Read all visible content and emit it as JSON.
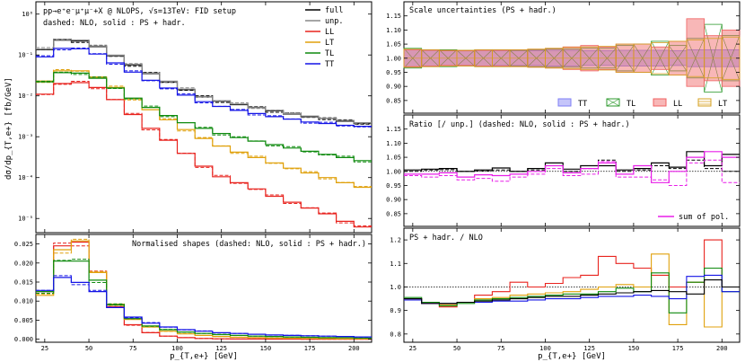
{
  "figure": {
    "xlabel": "p_{T,e+} [GeV]",
    "xticks": [
      25,
      50,
      75,
      100,
      125,
      150,
      175,
      200
    ],
    "xlim": [
      20,
      210
    ],
    "bin_edges": [
      20,
      30,
      40,
      50,
      60,
      70,
      80,
      90,
      100,
      110,
      120,
      130,
      140,
      150,
      160,
      170,
      180,
      190,
      200,
      210
    ]
  },
  "chart_data": [
    {
      "id": "main",
      "type": "line",
      "title": "pp→e⁺e⁻μ⁺μ⁻+X @ NLOPS, √s=13TeV: FID setup",
      "subtitle": "dashed: NLO, solid : PS + hadr.",
      "ylabel": "dσ/dp_{T,e+} [fb/GeV]",
      "yscale": "log",
      "ylim": [
        4.5e-06,
        2
      ],
      "yticks": [
        {
          "v": 1,
          "t": "10⁰"
        },
        {
          "v": 0.1,
          "t": "10⁻¹"
        },
        {
          "v": 0.01,
          "t": "10⁻²"
        },
        {
          "v": 0.001,
          "t": "10⁻³"
        },
        {
          "v": 0.0001,
          "t": "10⁻⁴"
        },
        {
          "v": 1e-05,
          "t": "10⁻⁵"
        }
      ],
      "legend": [
        "full",
        "unp.",
        "LL",
        "LT",
        "TL",
        "TT"
      ],
      "series": [
        {
          "name": "full",
          "color": "#000000",
          "values": [
            0.135,
            0.23,
            0.22,
            0.16,
            0.096,
            0.057,
            0.035,
            0.022,
            0.0142,
            0.0094,
            0.0074,
            0.0061,
            0.0052,
            0.0043,
            0.0036,
            0.0031,
            0.0028,
            0.0024,
            0.0021
          ]
        },
        {
          "name": "unp.",
          "color": "#888888",
          "values": [
            0.14,
            0.24,
            0.23,
            0.165,
            0.099,
            0.059,
            0.036,
            0.0228,
            0.0146,
            0.0097,
            0.0076,
            0.0063,
            0.0053,
            0.0044,
            0.0037,
            0.0032,
            0.0028,
            0.0025,
            0.0022
          ]
        },
        {
          "name": "LL",
          "color": "#e8231e",
          "values": [
            0.011,
            0.02,
            0.021,
            0.016,
            0.0081,
            0.0035,
            0.0016,
            0.00082,
            0.00039,
            0.00019,
            0.000105,
            7.5e-05,
            5.3e-05,
            3.5e-05,
            2.5e-05,
            1.8e-05,
            1.3e-05,
            8.5e-06,
            6.2e-06
          ]
        },
        {
          "name": "LT",
          "color": "#e0a10c",
          "values": [
            0.023,
            0.041,
            0.041,
            0.029,
            0.016,
            0.0085,
            0.0046,
            0.0026,
            0.0015,
            0.00091,
            0.00059,
            0.00042,
            0.00031,
            0.00023,
            0.00017,
            0.00013,
            0.0001,
            7.5e-05,
            5.8e-05
          ]
        },
        {
          "name": "TL",
          "color": "#0e8a0e",
          "values": [
            0.022,
            0.037,
            0.036,
            0.027,
            0.0155,
            0.0088,
            0.0052,
            0.0033,
            0.0022,
            0.0016,
            0.0012,
            0.00095,
            0.00078,
            0.00064,
            0.00053,
            0.00044,
            0.00037,
            0.00031,
            0.00026
          ]
        },
        {
          "name": "TT",
          "color": "#1414e6",
          "values": [
            0.09,
            0.145,
            0.142,
            0.105,
            0.064,
            0.038,
            0.024,
            0.0155,
            0.0104,
            0.0072,
            0.0055,
            0.0044,
            0.0037,
            0.0031,
            0.0027,
            0.0023,
            0.0021,
            0.0019,
            0.0018
          ]
        }
      ]
    },
    {
      "id": "shapes",
      "type": "line",
      "title": "Normalised shapes (dashed: NLO, solid : PS + hadr.)",
      "ylim": [
        -0.0008,
        0.0275
      ],
      "yticks": [
        {
          "v": 0,
          "t": "0.000"
        },
        {
          "v": 0.005,
          "t": "0.005"
        },
        {
          "v": 0.01,
          "t": "0.010"
        },
        {
          "v": 0.015,
          "t": "0.015"
        },
        {
          "v": 0.02,
          "t": "0.020"
        },
        {
          "v": 0.025,
          "t": "0.025"
        }
      ],
      "series": [
        {
          "name": "LL",
          "color": "#e8231e",
          "values": [
            0.0125,
            0.0245,
            0.0255,
            0.0175,
            0.0085,
            0.0038,
            0.0017,
            0.0008,
            0.0004,
            0.0002,
            0.0001,
            6e-05,
            4e-05,
            3e-05,
            2e-05,
            1e-05,
            1e-05,
            1e-05,
            1e-05
          ]
        },
        {
          "name": "LT",
          "color": "#e0a10c",
          "values": [
            0.0115,
            0.0235,
            0.0258,
            0.0175,
            0.0092,
            0.0052,
            0.0032,
            0.0021,
            0.0014,
            0.001,
            0.0007,
            0.0005,
            0.0004,
            0.0003,
            0.00025,
            0.0002,
            0.00015,
            0.0001,
            0.0001
          ]
        },
        {
          "name": "TL",
          "color": "#0e8a0e",
          "values": [
            0.0125,
            0.0205,
            0.0205,
            0.0155,
            0.009,
            0.0054,
            0.0035,
            0.0025,
            0.0019,
            0.0015,
            0.0012,
            0.001,
            0.0008,
            0.0007,
            0.0006,
            0.0005,
            0.0004,
            0.0004,
            0.0003
          ]
        },
        {
          "name": "TT",
          "color": "#1414e6",
          "values": [
            0.0128,
            0.0162,
            0.0149,
            0.0125,
            0.0083,
            0.0058,
            0.0042,
            0.0032,
            0.0025,
            0.0021,
            0.0017,
            0.0015,
            0.0013,
            0.0011,
            0.001,
            0.0009,
            0.0008,
            0.0007,
            0.0006
          ]
        }
      ]
    },
    {
      "id": "scale",
      "type": "area",
      "title": "Scale uncertainties (PS + hadr.)",
      "ylim": [
        0.805,
        1.2
      ],
      "yticks": [
        {
          "v": 0.85,
          "t": "0.85"
        },
        {
          "v": 0.9,
          "t": "0.90"
        },
        {
          "v": 0.95,
          "t": "0.95"
        },
        {
          "v": 1.0,
          "t": "1.00"
        },
        {
          "v": 1.05,
          "t": "1.05"
        },
        {
          "v": 1.1,
          "t": "1.10"
        },
        {
          "v": 1.15,
          "t": "1.15"
        }
      ],
      "legend": [
        "TT",
        "TL",
        "LL",
        "LT"
      ],
      "bands": [
        {
          "name": "TT",
          "color": "#7e7ef5",
          "fill": "rgba(126,126,245,0.45)",
          "lo": [
            0.968,
            0.972,
            0.972,
            0.974,
            0.972,
            0.974,
            0.974,
            0.974,
            0.972,
            0.972,
            0.974,
            0.974,
            0.972,
            0.972,
            0.972,
            0.974,
            0.97,
            0.97,
            0.97
          ],
          "hi": [
            1.032,
            1.028,
            1.028,
            1.027,
            1.028,
            1.027,
            1.027,
            1.027,
            1.028,
            1.028,
            1.027,
            1.027,
            1.028,
            1.028,
            1.028,
            1.027,
            1.03,
            1.03,
            1.03
          ]
        },
        {
          "name": "TL",
          "color": "#2e9a2e",
          "fill": "none",
          "lo": [
            0.965,
            0.97,
            0.97,
            0.972,
            0.97,
            0.97,
            0.972,
            0.97,
            0.968,
            0.968,
            0.965,
            0.965,
            0.955,
            0.95,
            0.94,
            0.955,
            0.93,
            0.88,
            0.92
          ],
          "hi": [
            1.035,
            1.03,
            1.03,
            1.028,
            1.03,
            1.03,
            1.028,
            1.03,
            1.032,
            1.032,
            1.035,
            1.035,
            1.045,
            1.05,
            1.06,
            1.045,
            1.07,
            1.12,
            1.08
          ]
        },
        {
          "name": "LL",
          "color": "#f06060",
          "fill": "rgba(240,96,96,0.45)",
          "lo": [
            0.97,
            0.972,
            0.974,
            0.974,
            0.972,
            0.972,
            0.97,
            0.968,
            0.965,
            0.96,
            0.955,
            0.96,
            0.95,
            0.95,
            0.96,
            0.94,
            0.9,
            0.92,
            0.9
          ],
          "hi": [
            1.03,
            1.028,
            1.026,
            1.026,
            1.028,
            1.028,
            1.03,
            1.032,
            1.035,
            1.04,
            1.045,
            1.04,
            1.05,
            1.05,
            1.04,
            1.06,
            1.14,
            1.08,
            1.1
          ]
        },
        {
          "name": "LT",
          "color": "#d6a020",
          "fill": "none",
          "lo": [
            0.968,
            0.97,
            0.972,
            0.972,
            0.97,
            0.97,
            0.97,
            0.968,
            0.965,
            0.962,
            0.96,
            0.958,
            0.95,
            0.95,
            0.945,
            0.94,
            0.935,
            0.93,
            0.925
          ],
          "hi": [
            1.032,
            1.03,
            1.028,
            1.028,
            1.03,
            1.03,
            1.03,
            1.032,
            1.035,
            1.038,
            1.04,
            1.042,
            1.05,
            1.05,
            1.055,
            1.06,
            1.065,
            1.07,
            1.075
          ]
        }
      ]
    },
    {
      "id": "ratio",
      "type": "line",
      "title": "Ratio [/ unp.] (dashed: NLO, solid : PS + hadr.)",
      "ylim": [
        0.805,
        1.2
      ],
      "yticks": [
        {
          "v": 0.85,
          "t": "0.85"
        },
        {
          "v": 0.9,
          "t": "0.90"
        },
        {
          "v": 0.95,
          "t": "0.95"
        },
        {
          "v": 1.0,
          "t": "1.00"
        },
        {
          "v": 1.05,
          "t": "1.05"
        },
        {
          "v": 1.1,
          "t": "1.10"
        },
        {
          "v": 1.15,
          "t": "1.15"
        }
      ],
      "legend": [
        "sum of pol."
      ],
      "series": [
        {
          "name": "full",
          "color": "#000000",
          "solid": [
            1.005,
            1.008,
            1.01,
            1.0,
            1.005,
            1.012,
            1.0,
            1.01,
            1.03,
            1.008,
            1.02,
            1.02,
            1.005,
            1.01,
            1.03,
            1.015,
            1.07,
            1.02,
            1.06
          ],
          "dashed": [
            1.0,
            1.005,
            1.006,
            1.0,
            1.002,
            1.005,
            1.0,
            1.005,
            1.02,
            1.0,
            1.01,
            1.04,
            1.0,
            1.005,
            1.02,
            1.01,
            1.04,
            1.01,
            1.0
          ]
        },
        {
          "name": "sum of pol.",
          "color": "#e81ee8",
          "solid": [
            0.99,
            0.99,
            0.995,
            0.98,
            0.988,
            0.985,
            0.99,
            1.0,
            1.02,
            0.995,
            1.01,
            1.03,
            0.99,
            1.02,
            0.96,
            1.0,
            1.05,
            1.07,
            1.05
          ],
          "dashed": [
            0.985,
            0.98,
            0.985,
            0.97,
            0.975,
            0.965,
            0.98,
            0.99,
            1.01,
            0.985,
            0.99,
            1.035,
            0.98,
            0.98,
            0.97,
            0.95,
            1.03,
            1.04,
            0.96
          ]
        }
      ]
    },
    {
      "id": "psnlo",
      "type": "line",
      "title": "PS + hadr. / NLO",
      "ylim": [
        0.765,
        1.25
      ],
      "yticks": [
        {
          "v": 0.8,
          "t": "0.8"
        },
        {
          "v": 0.9,
          "t": "0.9"
        },
        {
          "v": 1.0,
          "t": "1.0"
        },
        {
          "v": 1.1,
          "t": "1.1"
        },
        {
          "v": 1.2,
          "t": "1.2"
        }
      ],
      "series": [
        {
          "name": "LL",
          "color": "#e8231e",
          "values": [
            0.95,
            0.93,
            0.915,
            0.935,
            0.965,
            0.98,
            1.02,
            1.0,
            1.015,
            1.04,
            1.05,
            1.13,
            1.1,
            1.08,
            1.05,
            1.0,
            1.02,
            1.2,
            1.0
          ]
        },
        {
          "name": "LT",
          "color": "#e0a10c",
          "values": [
            0.945,
            0.935,
            0.925,
            0.935,
            0.95,
            0.955,
            0.965,
            0.97,
            0.975,
            0.98,
            0.99,
            1.0,
            1.01,
            1.0,
            1.14,
            0.84,
            1.02,
            0.83,
            1.0
          ]
        },
        {
          "name": "TL",
          "color": "#0e8a0e",
          "values": [
            0.955,
            0.935,
            0.92,
            0.93,
            0.945,
            0.95,
            0.955,
            0.96,
            0.965,
            0.97,
            0.97,
            0.98,
            0.995,
            0.98,
            1.06,
            0.89,
            1.02,
            1.08,
            0.98
          ]
        },
        {
          "name": "TT",
          "color": "#1414e6",
          "values": [
            0.945,
            0.93,
            0.93,
            0.935,
            0.935,
            0.94,
            0.94,
            0.945,
            0.95,
            0.95,
            0.955,
            0.96,
            0.96,
            0.965,
            0.96,
            0.95,
            1.045,
            1.05,
            0.98
          ]
        },
        {
          "name": "full",
          "color": "#000000",
          "values": [
            0.95,
            0.93,
            0.93,
            0.935,
            0.94,
            0.945,
            0.95,
            0.955,
            0.96,
            0.96,
            0.965,
            0.97,
            0.975,
            0.98,
            0.985,
            0.98,
            0.97,
            1.03,
            1.0
          ]
        }
      ]
    }
  ]
}
